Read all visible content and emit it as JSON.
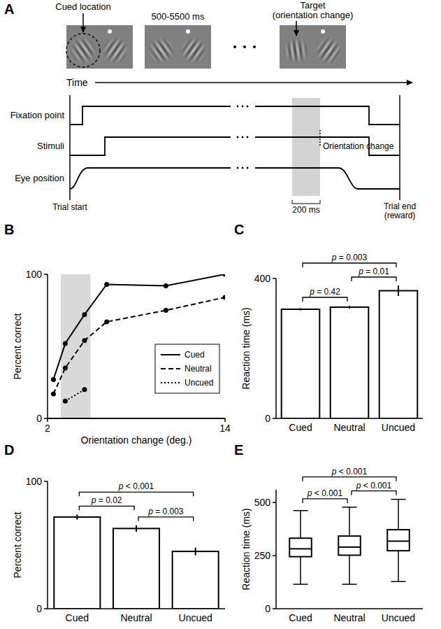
{
  "diagram": {
    "panel": "A",
    "screens": [
      {
        "label": [
          "Cued location"
        ]
      },
      {
        "label": [
          "500-5500 ms"
        ]
      },
      {
        "label": [
          "Target",
          "(orientation change)"
        ]
      }
    ],
    "time_label": "Time",
    "rows": [
      "Fixation point",
      "Stimuli",
      "Eye position"
    ],
    "event_label": "Orientation change",
    "scale_label": "200 ms",
    "start_label": "Trial start",
    "end_label": [
      "Trial end",
      "(reward)"
    ]
  },
  "chart_data": [
    {
      "type": "line",
      "title": "B",
      "xlabel": "Orientation change (deg.)",
      "ylabel": "Percent correct",
      "xlim": [
        2,
        14
      ],
      "xticks": [
        2,
        14
      ],
      "ylim": [
        0,
        100
      ],
      "yticks": [
        0,
        100
      ],
      "highlight": {
        "x": [
          2.9,
          4.9
        ]
      },
      "legend": "lower right",
      "series": [
        {
          "name": "Cued",
          "color": "#000000",
          "marker": "circle",
          "line_style": "solid",
          "x": [
            2.4,
            3.2,
            4.5,
            6.0,
            10.0,
            14.0
          ],
          "values": [
            27,
            52,
            72,
            93,
            92,
            100
          ]
        },
        {
          "name": "Neutral",
          "color": "#000000",
          "marker": "circle",
          "line_style": "dashed",
          "x": [
            2.4,
            3.2,
            4.5,
            6.0,
            10.0,
            14.0
          ],
          "values": [
            17,
            35,
            54,
            67,
            75,
            84
          ]
        },
        {
          "name": "Uncued",
          "color": "#000000",
          "marker": "circle",
          "line_style": "dotted",
          "x": [
            3.2,
            4.5
          ],
          "values": [
            12,
            20
          ]
        }
      ]
    },
    {
      "type": "bar",
      "title": "C",
      "ylabel": "Reaction time (ms)",
      "categories": [
        "Cued",
        "Neutral",
        "Uncued"
      ],
      "values": [
        312,
        318,
        365
      ],
      "errors": [
        3,
        4,
        15
      ],
      "color": "#000000",
      "ylim": [
        0,
        400
      ],
      "yticks": [
        0,
        400
      ],
      "annotations": [
        {
          "text": "p = 0.003",
          "from": 0,
          "to": 2
        },
        {
          "text": "p = 0.01",
          "from": 1,
          "to": 2
        },
        {
          "text": "p = 0.42",
          "from": 0,
          "to": 1
        }
      ]
    },
    {
      "type": "bar",
      "title": "D",
      "ylabel": "Percent correct",
      "categories": [
        "Cued",
        "Neutral",
        "Uncued"
      ],
      "values": [
        72,
        63,
        45
      ],
      "errors": [
        2,
        2.5,
        3
      ],
      "color": "#000000",
      "ylim": [
        0,
        100
      ],
      "yticks": [
        0,
        100
      ],
      "annotations": [
        {
          "text": "p < 0.001",
          "from": 0,
          "to": 2
        },
        {
          "text": "p = 0.02",
          "from": 0,
          "to": 1
        },
        {
          "text": "p = 0.003",
          "from": 1,
          "to": 2
        }
      ]
    },
    {
      "type": "box",
      "title": "E",
      "ylabel": "Reaction time (ms)",
      "categories": [
        "Cued",
        "Neutral",
        "Uncued"
      ],
      "boxes": [
        {
          "whisker_low": 115,
          "q1": 245,
          "median": 282,
          "q3": 332,
          "whisker_high": 462
        },
        {
          "whisker_low": 115,
          "q1": 252,
          "median": 290,
          "q3": 342,
          "whisker_high": 478
        },
        {
          "whisker_low": 128,
          "q1": 273,
          "median": 318,
          "q3": 372,
          "whisker_high": 515
        }
      ],
      "color": "#000000",
      "ylim": [
        0,
        560
      ],
      "yticks": [
        0,
        250,
        500
      ],
      "annotations": [
        {
          "text": "p < 0.001",
          "from": 0,
          "to": 2
        },
        {
          "text": "p < 0.001",
          "from": 0,
          "to": 1
        },
        {
          "text": "p < 0.001",
          "from": 1,
          "to": 2
        }
      ]
    }
  ]
}
